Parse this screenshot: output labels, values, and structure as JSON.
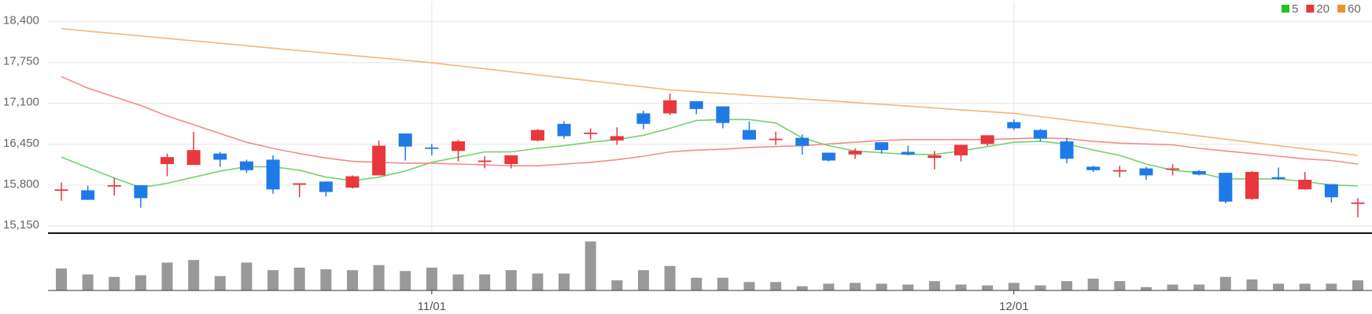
{
  "chart_data": {
    "type": "candlestick",
    "categories": [
      null,
      null,
      null,
      null,
      null,
      null,
      null,
      null,
      null,
      null,
      null,
      null,
      null,
      null,
      "11/01",
      null,
      null,
      null,
      null,
      null,
      null,
      null,
      null,
      null,
      null,
      null,
      null,
      null,
      null,
      null,
      null,
      null,
      null,
      null,
      null,
      null,
      "12/01",
      null,
      null,
      null,
      null,
      null,
      null,
      null,
      null,
      null,
      null,
      null,
      null,
      null
    ],
    "open": [
      15720,
      15719,
      15790,
      15800,
      16136,
      16122,
      16303,
      16178,
      16206,
      15810,
      15858,
      15761,
      15956,
      16622,
      16400,
      16345,
      16178,
      16136,
      16511,
      16775,
      16622,
      16511,
      16942,
      16942,
      17136,
      17053,
      16678,
      16525,
      16553,
      16317,
      16289,
      16483,
      16330,
      16233,
      16275,
      16455,
      16803,
      16678,
      16497,
      16094,
      16025,
      16067,
      16053,
      16025,
      15997,
      15581,
      15928,
      15733,
      15817,
      15511
    ],
    "high": [
      15844,
      15789,
      15914,
      15800,
      16303,
      16650,
      16330,
      16206,
      16275,
      15830,
      15858,
      15956,
      16511,
      16622,
      16455,
      16525,
      16261,
      16275,
      16692,
      16817,
      16705,
      16719,
      16983,
      17261,
      17136,
      17053,
      16817,
      16650,
      16608,
      16317,
      16386,
      16483,
      16428,
      16345,
      16442,
      16594,
      16844,
      16692,
      16553,
      16108,
      16108,
      16094,
      16136,
      16039,
      15997,
      16025,
      16081,
      16011,
      15817,
      15594
    ],
    "low": [
      15552,
      15567,
      15636,
      15442,
      15942,
      16122,
      16094,
      15997,
      15664,
      15608,
      15622,
      15747,
      15956,
      16192,
      16275,
      16178,
      16067,
      16067,
      16497,
      16539,
      16525,
      16442,
      16692,
      16914,
      16928,
      16705,
      16525,
      16442,
      16289,
      16178,
      16220,
      16303,
      16275,
      16053,
      16178,
      16428,
      16678,
      16497,
      16150,
      16011,
      15928,
      15886,
      15956,
      15956,
      15511,
      15567,
      15886,
      15733,
      15525,
      15289
    ],
    "close": [
      15733,
      15567,
      15800,
      15594,
      16247,
      16358,
      16206,
      16039,
      15733,
      15830,
      15692,
      15942,
      16428,
      16414,
      16386,
      16497,
      16192,
      16275,
      16678,
      16580,
      16636,
      16580,
      16775,
      17150,
      17011,
      16789,
      16525,
      16539,
      16428,
      16192,
      16345,
      16358,
      16289,
      16275,
      16442,
      16594,
      16705,
      16539,
      16220,
      16039,
      16039,
      15956,
      16067,
      15969,
      15539,
      16011,
      15900,
      15886,
      15608,
      15525
    ],
    "volume": [
      26,
      19,
      16,
      18,
      33,
      36,
      17,
      33,
      24,
      27,
      25,
      24,
      30,
      23,
      27,
      19,
      19,
      24,
      20,
      20,
      58,
      12,
      24,
      29,
      15,
      15,
      10,
      10,
      5,
      8,
      9,
      8,
      7,
      11,
      7,
      6,
      9,
      6,
      11,
      14,
      11,
      4,
      7,
      7,
      16,
      13,
      8,
      8,
      8,
      12
    ],
    "up_color": "#e8373e",
    "down_color": "#1e7be6",
    "volume_color": "#999999",
    "series": [
      {
        "name": "5",
        "color": "#22c322",
        "line_color": "#6fd36f",
        "values": [
          16247,
          16080,
          15914,
          15761,
          15830,
          15928,
          16025,
          16094,
          16094,
          16039,
          15928,
          15872,
          15928,
          16025,
          16164,
          16247,
          16330,
          16330,
          16386,
          16428,
          16483,
          16525,
          16594,
          16705,
          16830,
          16844,
          16844,
          16789,
          16553,
          16428,
          16345,
          16317,
          16289,
          16289,
          16345,
          16414,
          16483,
          16497,
          16455,
          16358,
          16275,
          16136,
          16039,
          15997,
          15900,
          15900,
          15900,
          15858,
          15803,
          15789
        ]
      },
      {
        "name": "20",
        "color": "#e8373e",
        "line_color": "#f28a8d",
        "values": [
          17525,
          17344,
          17205,
          17067,
          16900,
          16761,
          16622,
          16483,
          16386,
          16303,
          16233,
          16178,
          16164,
          16150,
          16150,
          16136,
          16122,
          16108,
          16108,
          16136,
          16164,
          16206,
          16261,
          16330,
          16358,
          16372,
          16400,
          16414,
          16428,
          16455,
          16483,
          16511,
          16525,
          16525,
          16525,
          16525,
          16539,
          16553,
          16539,
          16497,
          16469,
          16455,
          16442,
          16386,
          16345,
          16303,
          16261,
          16219,
          16192,
          16136
        ]
      },
      {
        "name": "60",
        "color": "#f0902a",
        "line_color": "#f5b574",
        "values": [
          18289,
          18250,
          18212,
          18173,
          18134,
          18096,
          18057,
          18018,
          17979,
          17941,
          17902,
          17863,
          17825,
          17786,
          17747,
          17699,
          17651,
          17603,
          17555,
          17507,
          17460,
          17412,
          17364,
          17316,
          17287,
          17258,
          17230,
          17201,
          17172,
          17143,
          17114,
          17086,
          17057,
          17028,
          16999,
          16970,
          16942,
          16891,
          16839,
          16788,
          16737,
          16685,
          16634,
          16583,
          16532,
          16480,
          16429,
          16378,
          16326,
          16275
        ]
      }
    ],
    "ylim": [
      15050,
      18720
    ],
    "yticks": [
      {
        "value": 15150,
        "label": "15,150"
      },
      {
        "value": 15800,
        "label": "15,800"
      },
      {
        "value": 16450,
        "label": "16,450"
      },
      {
        "value": 17100,
        "label": "17,100"
      },
      {
        "value": 17750,
        "label": "17,750"
      },
      {
        "value": 18400,
        "label": "18,400"
      }
    ],
    "vlim": [
      0,
      65
    ],
    "grid": true
  }
}
